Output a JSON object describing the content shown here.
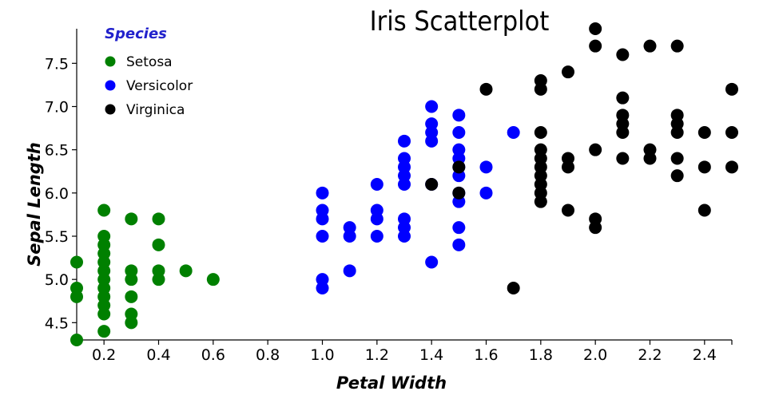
{
  "chart_data": {
    "type": "scatter",
    "title": "Iris Scatterplot",
    "xlabel": "Petal Width",
    "ylabel": "Sepal Length",
    "xlim": [
      0.1,
      2.5
    ],
    "ylim": [
      4.3,
      7.9
    ],
    "x_ticks": [
      0.2,
      0.4,
      0.6,
      0.8,
      1.0,
      1.2,
      1.4,
      1.6,
      1.8,
      2.0,
      2.2,
      2.4
    ],
    "x_tick_labels": [
      "0.2",
      "0.4",
      "0.6",
      "0.8",
      "1.0",
      "1.2",
      "1.4",
      "1.6",
      "1.8",
      "2.0",
      "2.2",
      "2.4"
    ],
    "y_ticks": [
      4.5,
      5.0,
      5.5,
      6.0,
      6.5,
      7.0,
      7.5
    ],
    "y_tick_labels": [
      "4.5",
      "5.0",
      "5.5",
      "6.0",
      "6.5",
      "7.0",
      "7.5"
    ],
    "grid": false,
    "legend": {
      "title": "Species",
      "placement": "top-left"
    },
    "series": [
      {
        "name": "Setosa",
        "color": "#008000",
        "points": [
          [
            0.1,
            4.3
          ],
          [
            0.1,
            4.8
          ],
          [
            0.1,
            4.9
          ],
          [
            0.1,
            5.2
          ],
          [
            0.2,
            4.4
          ],
          [
            0.2,
            4.6
          ],
          [
            0.2,
            4.7
          ],
          [
            0.2,
            4.8
          ],
          [
            0.2,
            4.9
          ],
          [
            0.2,
            5.0
          ],
          [
            0.2,
            5.1
          ],
          [
            0.2,
            5.2
          ],
          [
            0.2,
            5.3
          ],
          [
            0.2,
            5.4
          ],
          [
            0.2,
            5.5
          ],
          [
            0.2,
            5.8
          ],
          [
            0.3,
            4.5
          ],
          [
            0.3,
            4.6
          ],
          [
            0.3,
            4.8
          ],
          [
            0.3,
            5.0
          ],
          [
            0.3,
            5.1
          ],
          [
            0.3,
            5.7
          ],
          [
            0.4,
            5.0
          ],
          [
            0.4,
            5.1
          ],
          [
            0.4,
            5.4
          ],
          [
            0.4,
            5.7
          ],
          [
            0.5,
            5.1
          ],
          [
            0.6,
            5.0
          ]
        ]
      },
      {
        "name": "Versicolor",
        "color": "#0000ff",
        "points": [
          [
            1.0,
            4.9
          ],
          [
            1.0,
            5.0
          ],
          [
            1.0,
            5.5
          ],
          [
            1.0,
            5.7
          ],
          [
            1.0,
            5.8
          ],
          [
            1.0,
            6.0
          ],
          [
            1.1,
            5.1
          ],
          [
            1.1,
            5.5
          ],
          [
            1.1,
            5.6
          ],
          [
            1.2,
            5.5
          ],
          [
            1.2,
            5.7
          ],
          [
            1.2,
            5.8
          ],
          [
            1.2,
            6.1
          ],
          [
            1.3,
            5.5
          ],
          [
            1.3,
            5.6
          ],
          [
            1.3,
            5.7
          ],
          [
            1.3,
            6.1
          ],
          [
            1.3,
            6.2
          ],
          [
            1.3,
            6.3
          ],
          [
            1.3,
            6.4
          ],
          [
            1.3,
            6.6
          ],
          [
            1.4,
            5.2
          ],
          [
            1.4,
            6.1
          ],
          [
            1.4,
            6.6
          ],
          [
            1.4,
            6.7
          ],
          [
            1.4,
            6.8
          ],
          [
            1.4,
            7.0
          ],
          [
            1.5,
            5.4
          ],
          [
            1.5,
            5.6
          ],
          [
            1.5,
            5.9
          ],
          [
            1.5,
            6.0
          ],
          [
            1.5,
            6.2
          ],
          [
            1.5,
            6.3
          ],
          [
            1.5,
            6.4
          ],
          [
            1.5,
            6.5
          ],
          [
            1.5,
            6.7
          ],
          [
            1.5,
            6.9
          ],
          [
            1.6,
            6.0
          ],
          [
            1.6,
            6.3
          ],
          [
            1.7,
            6.7
          ]
        ]
      },
      {
        "name": "Virginica",
        "color": "#000000",
        "points": [
          [
            1.4,
            6.1
          ],
          [
            1.5,
            6.0
          ],
          [
            1.5,
            6.3
          ],
          [
            1.6,
            7.2
          ],
          [
            1.7,
            4.9
          ],
          [
            1.8,
            5.9
          ],
          [
            1.8,
            6.0
          ],
          [
            1.8,
            6.1
          ],
          [
            1.8,
            6.2
          ],
          [
            1.8,
            6.3
          ],
          [
            1.8,
            6.4
          ],
          [
            1.8,
            6.5
          ],
          [
            1.8,
            6.7
          ],
          [
            1.8,
            7.2
          ],
          [
            1.8,
            7.3
          ],
          [
            1.9,
            5.8
          ],
          [
            1.9,
            6.3
          ],
          [
            1.9,
            6.4
          ],
          [
            1.9,
            7.4
          ],
          [
            2.0,
            5.6
          ],
          [
            2.0,
            5.7
          ],
          [
            2.0,
            6.5
          ],
          [
            2.0,
            7.7
          ],
          [
            2.0,
            7.9
          ],
          [
            2.1,
            6.4
          ],
          [
            2.1,
            6.7
          ],
          [
            2.1,
            6.8
          ],
          [
            2.1,
            6.9
          ],
          [
            2.1,
            7.1
          ],
          [
            2.1,
            7.6
          ],
          [
            2.2,
            6.4
          ],
          [
            2.2,
            6.5
          ],
          [
            2.2,
            7.7
          ],
          [
            2.3,
            6.2
          ],
          [
            2.3,
            6.4
          ],
          [
            2.3,
            6.7
          ],
          [
            2.3,
            6.8
          ],
          [
            2.3,
            6.9
          ],
          [
            2.3,
            7.7
          ],
          [
            2.4,
            5.8
          ],
          [
            2.4,
            6.3
          ],
          [
            2.4,
            6.7
          ],
          [
            2.5,
            6.3
          ],
          [
            2.5,
            6.7
          ],
          [
            2.5,
            7.2
          ]
        ]
      }
    ]
  }
}
